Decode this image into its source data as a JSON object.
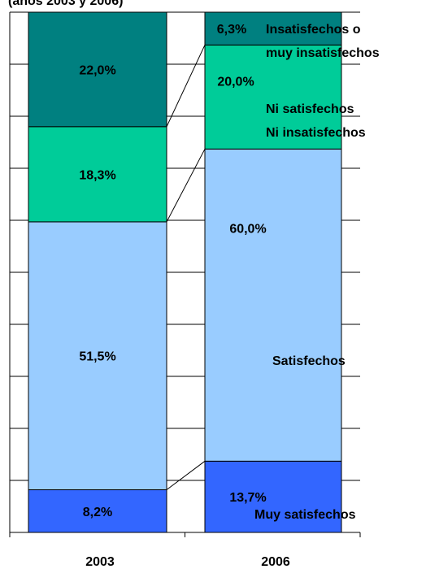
{
  "chart_data": {
    "type": "stacked_bar_100",
    "subtitle": "(años 2003 y 2006)",
    "categories": [
      "2003",
      "2006"
    ],
    "ylim": [
      0,
      100
    ],
    "gridlines": [
      0,
      10,
      20,
      30,
      40,
      50,
      60,
      70,
      80,
      90,
      100
    ],
    "series_lines": true,
    "series": [
      {
        "name": "Muy satisfechos",
        "color": "#3366ff",
        "values": [
          8.2,
          13.7
        ],
        "value_labels": [
          "8,2%",
          "13,7%"
        ]
      },
      {
        "name": "Satisfechos",
        "color": "#99ccff",
        "values": [
          51.5,
          60.0
        ],
        "value_labels": [
          "51,5%",
          "60,0%"
        ]
      },
      {
        "name": "Ni satisfechos\nNi insatisfechos",
        "color": "#00cc99",
        "values": [
          18.3,
          20.0
        ],
        "value_labels": [
          "18,3%",
          "20,0%"
        ]
      },
      {
        "name": "Insatisfechos o\nmuy insatisfechos",
        "color": "#008080",
        "values": [
          22.0,
          6.3
        ],
        "value_labels": [
          "22,0%",
          "6,3%"
        ]
      }
    ]
  }
}
